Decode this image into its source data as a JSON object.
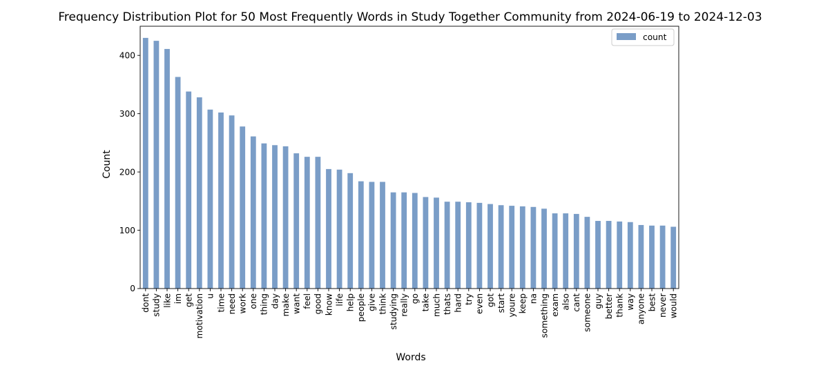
{
  "chart_data": {
    "type": "bar",
    "title": "Frequency Distribution Plot for 50 Most Frequently Words in Study Together Community from 2024-06-19 to 2024-12-03",
    "xlabel": "Words",
    "ylabel": "Count",
    "ylim": [
      0,
      450
    ],
    "yticks": [
      0,
      100,
      200,
      300,
      400
    ],
    "grid": false,
    "legend_position": "top-right",
    "bar_color": "#7a9dc7",
    "categories": [
      "dont",
      "study",
      "like",
      "im",
      "get",
      "motivation",
      "u",
      "time",
      "need",
      "work",
      "one",
      "thing",
      "day",
      "make",
      "want",
      "feel",
      "good",
      "know",
      "life",
      "help",
      "people",
      "give",
      "think",
      "studying",
      "really",
      "go",
      "take",
      "much",
      "thats",
      "hard",
      "try",
      "even",
      "got",
      "start",
      "youre",
      "keep",
      "na",
      "something",
      "exam",
      "also",
      "cant",
      "someone",
      "guy",
      "better",
      "thank",
      "way",
      "anyone",
      "best",
      "never",
      "would"
    ],
    "series": [
      {
        "name": "count",
        "values": [
          430,
          425,
          411,
          363,
          338,
          328,
          307,
          302,
          297,
          278,
          261,
          249,
          246,
          244,
          232,
          226,
          226,
          205,
          204,
          198,
          184,
          183,
          183,
          165,
          165,
          164,
          157,
          156,
          149,
          149,
          148,
          147,
          145,
          143,
          142,
          141,
          140,
          137,
          129,
          129,
          128,
          123,
          116,
          116,
          115,
          114,
          109,
          108,
          108,
          106
        ]
      }
    ]
  }
}
